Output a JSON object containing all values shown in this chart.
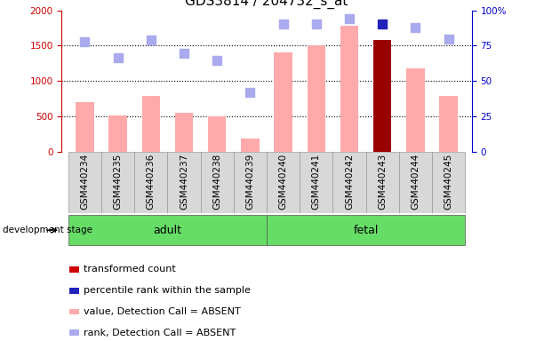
{
  "title": "GDS3814 / 204732_s_at",
  "samples": [
    "GSM440234",
    "GSM440235",
    "GSM440236",
    "GSM440237",
    "GSM440238",
    "GSM440239",
    "GSM440240",
    "GSM440241",
    "GSM440242",
    "GSM440243",
    "GSM440244",
    "GSM440245"
  ],
  "bar_values": [
    700,
    510,
    790,
    555,
    500,
    185,
    1410,
    1500,
    1775,
    1575,
    1175,
    795
  ],
  "bar_colors": [
    "#ffaaaa",
    "#ffaaaa",
    "#ffaaaa",
    "#ffaaaa",
    "#ffaaaa",
    "#ffaaaa",
    "#ffaaaa",
    "#ffaaaa",
    "#ffaaaa",
    "#990000",
    "#ffaaaa",
    "#ffaaaa"
  ],
  "rank_dots": [
    1555,
    1325,
    1580,
    1395,
    1285,
    835,
    1805,
    1805,
    1875,
    1810,
    1750,
    1590
  ],
  "rank_dot_colors": [
    "#aaaaee",
    "#aaaaee",
    "#aaaaee",
    "#aaaaee",
    "#aaaaee",
    "#aaaaee",
    "#aaaaee",
    "#aaaaee",
    "#aaaaee",
    "#2222bb",
    "#aaaaee",
    "#aaaaee"
  ],
  "ylim_left": [
    0,
    2000
  ],
  "ylim_right": [
    0,
    100
  ],
  "yticks_left": [
    0,
    500,
    1000,
    1500,
    2000
  ],
  "yticks_right": [
    0,
    25,
    50,
    75,
    100
  ],
  "adult_label": "adult",
  "fetal_label": "fetal",
  "stage_label": "development stage",
  "legend_entries": [
    {
      "label": "transformed count",
      "color": "#cc0000"
    },
    {
      "label": "percentile rank within the sample",
      "color": "#2222bb"
    },
    {
      "label": "value, Detection Call = ABSENT",
      "color": "#ffaaaa"
    },
    {
      "label": "rank, Detection Call = ABSENT",
      "color": "#aaaaee"
    }
  ],
  "bar_width": 0.55,
  "dot_size": 55,
  "background_color": "#ffffff",
  "left_axis_color": "#cc0000",
  "right_axis_color": "#0000cc",
  "title_fontsize": 11,
  "tick_fontsize": 7.5,
  "label_fontsize": 9,
  "legend_fontsize": 8,
  "sample_box_color": "#d8d8d8",
  "group_box_color": "#66dd66"
}
